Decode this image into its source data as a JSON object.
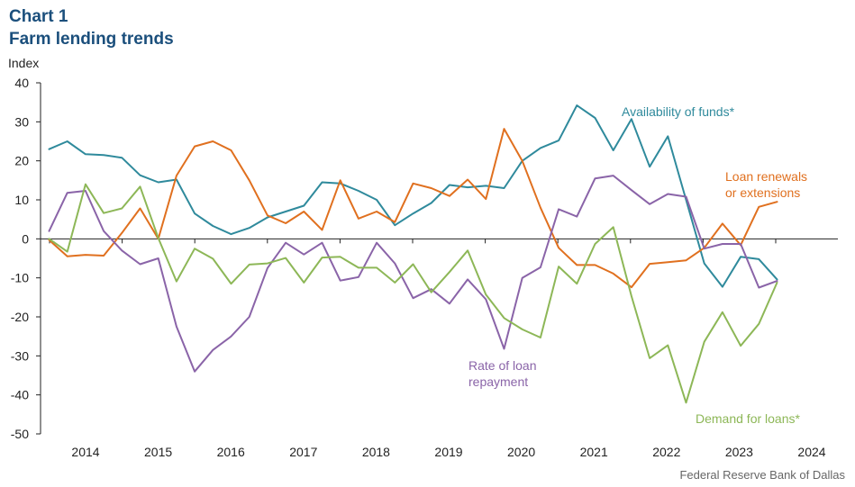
{
  "header": {
    "chart_label": "Chart 1",
    "title": "Farm lending trends",
    "y_unit": "Index",
    "source": "Federal Reserve Bank of Dallas"
  },
  "colors": {
    "title": "#1b4f7c",
    "availability": "#2f8a9c",
    "renewals": "#e0701f",
    "repayment": "#8a64a8",
    "demand": "#8db757"
  },
  "chart_data": {
    "type": "line",
    "title": "Farm lending trends",
    "ylabel": "Index",
    "xlabel": "",
    "ylim": [
      -50,
      40
    ],
    "yticks": [
      40,
      30,
      20,
      10,
      0,
      -10,
      -20,
      -30,
      -40,
      -50
    ],
    "xlim": [
      2013.5,
      2025.0
    ],
    "year_labels": [
      "2014",
      "2015",
      "2016",
      "2017",
      "2018",
      "2019",
      "2020",
      "2021",
      "2022",
      "2023",
      "2024"
    ],
    "quarters_start": "2013Q4",
    "series": [
      {
        "name": "Availability of funds*",
        "key": "availability",
        "annotation": [
          "Availability of funds*"
        ],
        "values": [
          23,
          25,
          21.7,
          21.5,
          20.8,
          16.3,
          14.5,
          15.2,
          6.5,
          3.3,
          1.2,
          2.8,
          5.5,
          7,
          8.5,
          14.5,
          14.2,
          12.3,
          10,
          3.5,
          6.5,
          9.2,
          13.8,
          13.2,
          13.6,
          13,
          20,
          23.3,
          25.2,
          34.2,
          31,
          22.7,
          30.7,
          18.5,
          26.3,
          10,
          -6.3,
          -12.3,
          -4.6,
          -5.2,
          -10.4
        ]
      },
      {
        "name": "Loan renewals or extensions",
        "key": "renewals",
        "annotation": [
          "Loan renewals",
          "or extensions"
        ],
        "values": [
          -0.3,
          -4.5,
          -4.1,
          -4.3,
          1.5,
          7.8,
          0,
          16.2,
          23.7,
          25,
          22.7,
          15,
          6,
          4,
          7,
          2.3,
          15,
          5.2,
          7,
          4.3,
          14.2,
          13,
          11,
          15.2,
          10.2,
          28.2,
          20,
          8,
          -2.3,
          -6.7,
          -6.7,
          -8.9,
          -12.4,
          -6.4,
          -6,
          -5.5,
          -2.3,
          3.9,
          -1.6,
          8.2,
          9.5
        ]
      },
      {
        "name": "Rate of loan repayment",
        "key": "repayment",
        "annotation": [
          "Rate of loan",
          "repayment"
        ],
        "values": [
          2,
          11.8,
          12.3,
          2,
          -3,
          -6.5,
          -5,
          -22.5,
          -34,
          -28.5,
          -25,
          -20,
          -7.5,
          -1,
          -4,
          -1,
          -10.7,
          -9.8,
          -1,
          -6.3,
          -15.2,
          -12.9,
          -16.6,
          -10.4,
          -15.5,
          -28.2,
          -10,
          -7.3,
          7.6,
          5.7,
          15.5,
          16.2,
          12.5,
          8.9,
          11.5,
          10.8,
          -2.5,
          -1.3,
          -1.3,
          -12.5,
          -10.8
        ]
      },
      {
        "name": "Demand for loans*",
        "key": "demand",
        "annotation": [
          "Demand for loans*"
        ],
        "values": [
          0,
          -3.3,
          14,
          6.6,
          7.8,
          13.4,
          0.2,
          -10.9,
          -2.5,
          -5.1,
          -11.5,
          -6.6,
          -6.3,
          -4.9,
          -11.2,
          -4.8,
          -4.6,
          -7.4,
          -7.4,
          -11.2,
          -6.5,
          -13.7,
          -8.5,
          -3,
          -14.3,
          -20.3,
          -23.2,
          -25.3,
          -7.1,
          -11.5,
          -1.3,
          3,
          -14.7,
          -30.6,
          -27.3,
          -42,
          -26.4,
          -18.8,
          -27.4,
          -21.8,
          -11.2
        ]
      }
    ]
  }
}
